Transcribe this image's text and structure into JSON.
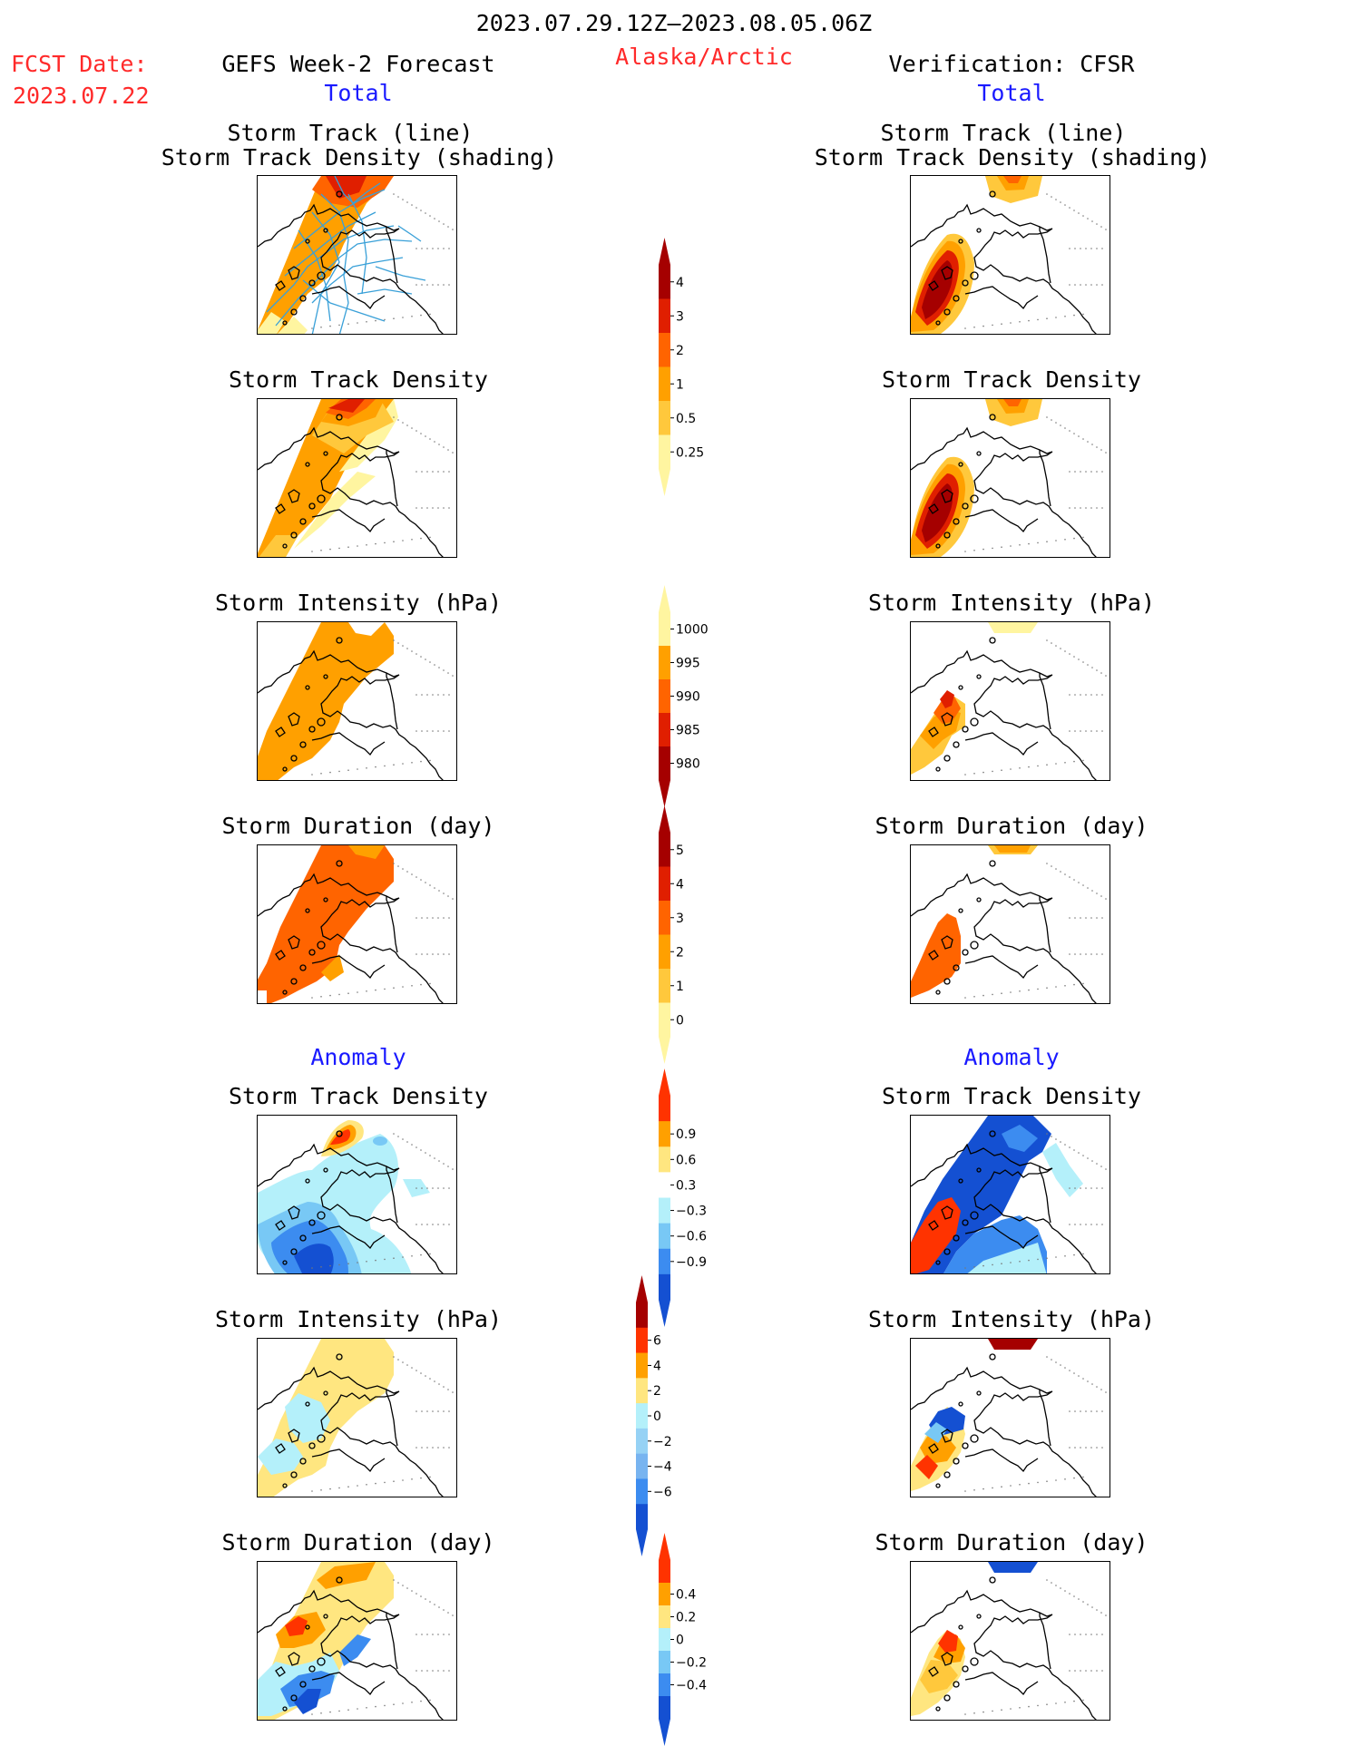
{
  "header": {
    "date_range": "2023.07.29.12Z–2023.08.05.06Z",
    "region": "Alaska/Arctic",
    "fcst_date_label": "FCST Date:",
    "fcst_date_value": "2023.07.22",
    "left_title": "GEFS Week-2 Forecast",
    "right_title": "Verification: CFSR",
    "left_total": "Total",
    "right_total": "Total",
    "left_anomaly": "Anomaly",
    "right_anomaly": "Anomaly"
  },
  "panel_titles": {
    "track_line": "Storm Track (line)",
    "track_shading": "Storm Track Density (shading)",
    "density": "Storm Track Density",
    "intensity": "Storm Intensity (hPa)",
    "duration": "Storm Duration (day)"
  },
  "colorbars": [
    {
      "name": "total-density",
      "labels": [
        "4",
        "3",
        "2",
        "1",
        "0.5",
        "0.25"
      ],
      "colors": [
        "#a50000",
        "#e01f00",
        "#ff6400",
        "#ffa000",
        "#ffc83c",
        "#fff5a0"
      ]
    },
    {
      "name": "total-intensity",
      "labels": [
        "1000",
        "995",
        "990",
        "985",
        "980"
      ],
      "colors": [
        "#fff5a0",
        "#ffa000",
        "#ff6400",
        "#e01f00",
        "#a50000"
      ]
    },
    {
      "name": "total-duration",
      "labels": [
        "5",
        "4",
        "3",
        "2",
        "1",
        "0"
      ],
      "colors": [
        "#a50000",
        "#e01f00",
        "#ff6400",
        "#ffa000",
        "#ffc83c",
        "#fff5a0"
      ]
    },
    {
      "name": "anomaly-density",
      "labels": [
        "0.9",
        "0.6",
        "0.3",
        "−0.3",
        "−0.6",
        "−0.9"
      ],
      "colors": [
        "#ff3300",
        "#ffa000",
        "#ffe680",
        "#ffffff",
        "#b4f0fa",
        "#78c8f5",
        "#3c8cf0",
        "#1450d2"
      ]
    },
    {
      "name": "anomaly-intensity",
      "labels": [
        "6",
        "4",
        "2",
        "0",
        "−2",
        "−4",
        "−6"
      ],
      "colors": [
        "#a50000",
        "#ff3300",
        "#ffa000",
        "#ffe680",
        "#b4f0fa",
        "#96d2f5",
        "#78b4f0",
        "#3c8cf0",
        "#1450d2"
      ]
    },
    {
      "name": "anomaly-duration",
      "labels": [
        "0.4",
        "0.2",
        "0",
        "−0.2",
        "−0.4"
      ],
      "colors": [
        "#ff3300",
        "#ffa000",
        "#ffe680",
        "#b4f0fa",
        "#78c8f5",
        "#3c8cf0",
        "#1450d2"
      ]
    }
  ],
  "colors": {
    "title_red": "#ff2a2a",
    "total_blue": "#1a1aff",
    "track_line": "#39a0d8"
  }
}
